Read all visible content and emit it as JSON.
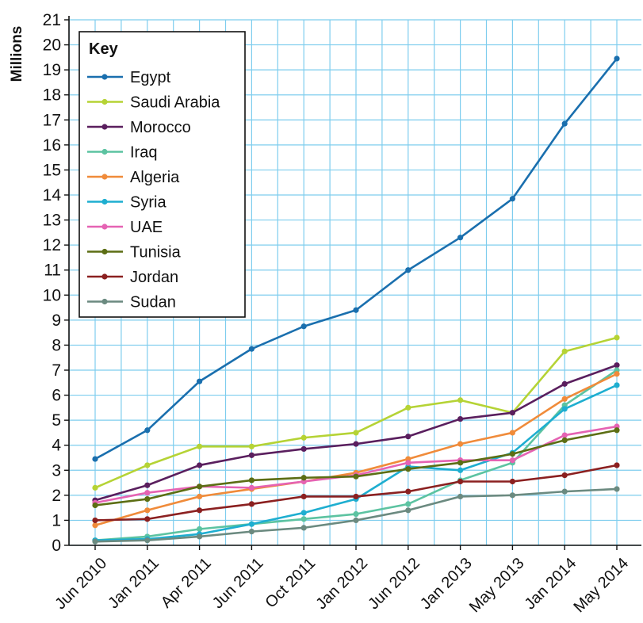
{
  "chart_data": {
    "type": "line",
    "ylabel": "Millions",
    "ylim": [
      0,
      21
    ],
    "yticks": [
      0,
      1,
      2,
      3,
      4,
      5,
      6,
      7,
      8,
      9,
      10,
      11,
      12,
      13,
      14,
      15,
      16,
      17,
      18,
      19,
      20,
      21
    ],
    "categories": [
      "Jun 2010",
      "Jan 2011",
      "Apr 2011",
      "Jun 2011",
      "Oct 2011",
      "Jan 2012",
      "Jun 2012",
      "Jan 2013",
      "May 2013",
      "Jan 2014",
      "May 2014"
    ],
    "grid": true,
    "legend": {
      "title": "Key",
      "placement": "top-left"
    },
    "series": [
      {
        "name": "Egypt",
        "color": "#1a6fae",
        "values": [
          3.45,
          4.6,
          6.55,
          7.85,
          8.75,
          9.4,
          11.0,
          12.3,
          13.85,
          16.85,
          19.45
        ]
      },
      {
        "name": "Saudi Arabia",
        "color": "#b5d335",
        "values": [
          2.3,
          3.2,
          3.95,
          3.95,
          4.3,
          4.5,
          5.5,
          5.8,
          5.3,
          7.75,
          8.3
        ]
      },
      {
        "name": "Morocco",
        "color": "#5a1f5e",
        "values": [
          1.8,
          2.4,
          3.2,
          3.6,
          3.85,
          4.05,
          4.35,
          5.05,
          5.3,
          6.45,
          7.2
        ]
      },
      {
        "name": "Iraq",
        "color": "#5cc3a1",
        "values": [
          0.2,
          0.35,
          0.65,
          0.85,
          1.05,
          1.25,
          1.65,
          2.6,
          3.3,
          5.6,
          7.0
        ]
      },
      {
        "name": "Algeria",
        "color": "#f08b3a",
        "values": [
          0.8,
          1.4,
          1.95,
          2.25,
          2.55,
          2.9,
          3.45,
          4.05,
          4.5,
          5.85,
          6.85
        ]
      },
      {
        "name": "Syria",
        "color": "#1eaed0",
        "values": [
          0.2,
          0.25,
          0.45,
          0.85,
          1.3,
          1.85,
          3.15,
          3.0,
          3.7,
          5.45,
          6.4
        ]
      },
      {
        "name": "UAE",
        "color": "#e563b3",
        "values": [
          1.7,
          2.1,
          2.35,
          2.3,
          2.55,
          2.8,
          3.3,
          3.4,
          3.4,
          4.4,
          4.75
        ]
      },
      {
        "name": "Tunisia",
        "color": "#5c6e14",
        "values": [
          1.6,
          1.85,
          2.35,
          2.6,
          2.7,
          2.75,
          3.05,
          3.3,
          3.65,
          4.2,
          4.6
        ]
      },
      {
        "name": "Jordan",
        "color": "#8b2020",
        "values": [
          1.0,
          1.05,
          1.4,
          1.65,
          1.95,
          1.95,
          2.15,
          2.55,
          2.55,
          2.8,
          3.2
        ]
      },
      {
        "name": "Sudan",
        "color": "#6b8a80",
        "values": [
          0.15,
          0.2,
          0.35,
          0.55,
          0.7,
          1.0,
          1.4,
          1.95,
          2.0,
          2.15,
          2.25
        ]
      }
    ]
  }
}
